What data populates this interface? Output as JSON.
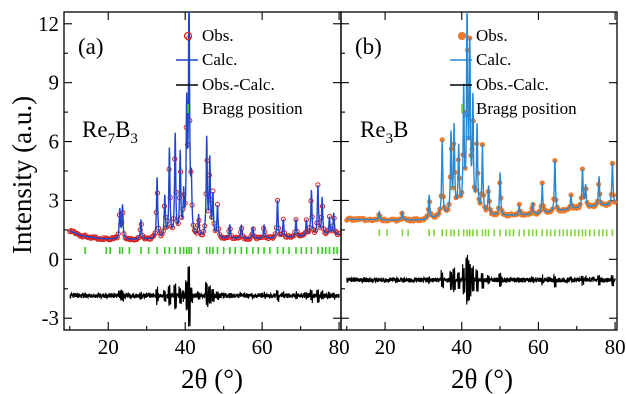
{
  "chart_data": {
    "type": "line",
    "ylabel": "Intensity (a.u.)",
    "xlabel": "2θ (°)",
    "ylim": [
      -3.6,
      12.6
    ],
    "yticks": [
      -3,
      0,
      3,
      6,
      9,
      12
    ],
    "yticks_right_panel": [
      -3,
      0,
      3,
      6,
      9,
      12
    ],
    "xlim": [
      8.5,
      80.5
    ],
    "xticks": [
      20,
      40,
      60,
      80
    ],
    "xtick_labels": [
      "20",
      "40",
      "60",
      "80"
    ],
    "legend": {
      "entries": [
        "Obs.",
        "Calc.",
        "Obs.-Calc.",
        "Bragg position"
      ],
      "placement": "top-right"
    },
    "panels": [
      {
        "label": "(a)",
        "compound": "Re7B3",
        "compound_base": "Re",
        "compound_sub1": "7",
        "compound_mid": "B",
        "compound_sub2": "3",
        "obs_color": "#d62020",
        "calc_color": "#1f46c8",
        "diff_color": "#000000",
        "bragg_color": "#33cc1a",
        "background": [
          [
            10,
            1.45
          ],
          [
            13,
            1.2
          ],
          [
            18,
            1.05
          ],
          [
            25,
            1.0
          ],
          [
            40,
            1.05
          ],
          [
            60,
            1.05
          ],
          [
            80,
            1.25
          ]
        ],
        "peaks": [
          {
            "x": 23.0,
            "y": 1.5
          },
          {
            "x": 23.7,
            "y": 1.7
          },
          {
            "x": 28.5,
            "y": 1.0
          },
          {
            "x": 32.7,
            "y": 3.1
          },
          {
            "x": 34.7,
            "y": 2.1
          },
          {
            "x": 35.9,
            "y": 4.5
          },
          {
            "x": 37.4,
            "y": 5.2
          },
          {
            "x": 38.7,
            "y": 4.2
          },
          {
            "x": 39.6,
            "y": 2.0
          },
          {
            "x": 40.4,
            "y": 6.3
          },
          {
            "x": 41.0,
            "y": 12.5
          },
          {
            "x": 41.6,
            "y": 2.5
          },
          {
            "x": 43.5,
            "y": 1.1
          },
          {
            "x": 45.6,
            "y": 5.0
          },
          {
            "x": 46.4,
            "y": 3.9
          },
          {
            "x": 47.2,
            "y": 2.1
          },
          {
            "x": 48.4,
            "y": 1.6
          },
          {
            "x": 51.6,
            "y": 0.7
          },
          {
            "x": 54.6,
            "y": 0.7
          },
          {
            "x": 57.6,
            "y": 0.6
          },
          {
            "x": 60.5,
            "y": 0.7
          },
          {
            "x": 64.0,
            "y": 1.9
          },
          {
            "x": 65.5,
            "y": 0.9
          },
          {
            "x": 68.8,
            "y": 0.9
          },
          {
            "x": 71.5,
            "y": 0.8
          },
          {
            "x": 72.8,
            "y": 2.3
          },
          {
            "x": 74.5,
            "y": 2.5
          },
          {
            "x": 75.6,
            "y": 1.9
          },
          {
            "x": 77.5,
            "y": 0.9
          },
          {
            "x": 78.6,
            "y": 1.1
          }
        ],
        "bragg_y": 0.45,
        "bragg_positions": [
          14.0,
          19.5,
          20.5,
          23.0,
          23.7,
          25.5,
          28.5,
          30.5,
          32.7,
          34.7,
          35.9,
          37.4,
          38.7,
          39.6,
          40.4,
          41.0,
          41.6,
          43.5,
          45.6,
          46.4,
          47.2,
          48.4,
          50.0,
          51.6,
          53.0,
          54.6,
          56.0,
          57.6,
          59.0,
          60.5,
          62.0,
          64.0,
          65.5,
          67.0,
          68.8,
          70.2,
          71.5,
          72.8,
          74.5,
          75.6,
          76.5,
          77.5,
          78.6,
          79.5
        ],
        "diff_baseline": -1.85
      },
      {
        "label": "(b)",
        "compound": "Re3B",
        "compound_base": "Re",
        "compound_sub1": "3",
        "compound_mid": "B",
        "compound_sub2": "",
        "obs_color": "#f07a2a",
        "calc_color": "#2a88d0",
        "diff_color": "#000000",
        "bragg_color": "#7fd63a",
        "background": [
          [
            10,
            2.05
          ],
          [
            20,
            2.0
          ],
          [
            30,
            2.0
          ],
          [
            40,
            2.4
          ],
          [
            50,
            2.2
          ],
          [
            60,
            2.3
          ],
          [
            70,
            2.6
          ],
          [
            80,
            2.8
          ]
        ],
        "peaks": [
          {
            "x": 18.5,
            "y": 0.4
          },
          {
            "x": 24.5,
            "y": 0.4
          },
          {
            "x": 31.5,
            "y": 1.2
          },
          {
            "x": 34.9,
            "y": 3.8
          },
          {
            "x": 37.2,
            "y": 4.0
          },
          {
            "x": 38.0,
            "y": 4.3
          },
          {
            "x": 39.2,
            "y": 3.2
          },
          {
            "x": 40.5,
            "y": 6.0
          },
          {
            "x": 41.4,
            "y": 10.0
          },
          {
            "x": 42.1,
            "y": 8.0
          },
          {
            "x": 42.9,
            "y": 5.5
          },
          {
            "x": 44.0,
            "y": 4.3
          },
          {
            "x": 45.4,
            "y": 3.4
          },
          {
            "x": 47.0,
            "y": 1.4
          },
          {
            "x": 50.0,
            "y": 2.2
          },
          {
            "x": 55.0,
            "y": 0.5
          },
          {
            "x": 58.5,
            "y": 0.6
          },
          {
            "x": 61.0,
            "y": 1.5
          },
          {
            "x": 64.3,
            "y": 2.6
          },
          {
            "x": 68.5,
            "y": 0.7
          },
          {
            "x": 71.5,
            "y": 1.9
          },
          {
            "x": 72.3,
            "y": 1.1
          },
          {
            "x": 75.8,
            "y": 1.5
          },
          {
            "x": 79.3,
            "y": 2.1
          }
        ],
        "bragg_y": 1.35,
        "bragg_positions": [
          18.5,
          20.5,
          24.5,
          26.0,
          31.5,
          32.8,
          34.9,
          36.0,
          37.2,
          38.0,
          39.2,
          40.5,
          41.4,
          42.1,
          42.9,
          44.0,
          45.4,
          46.2,
          47.0,
          48.5,
          50.0,
          51.5,
          52.5,
          53.5,
          55.0,
          56.2,
          57.5,
          58.5,
          59.5,
          61.0,
          62.2,
          63.2,
          64.3,
          65.5,
          66.5,
          67.5,
          68.5,
          69.5,
          70.5,
          71.5,
          72.3,
          73.4,
          74.6,
          75.8,
          76.8,
          77.8,
          79.3
        ],
        "diff_baseline": -1.05
      }
    ]
  }
}
